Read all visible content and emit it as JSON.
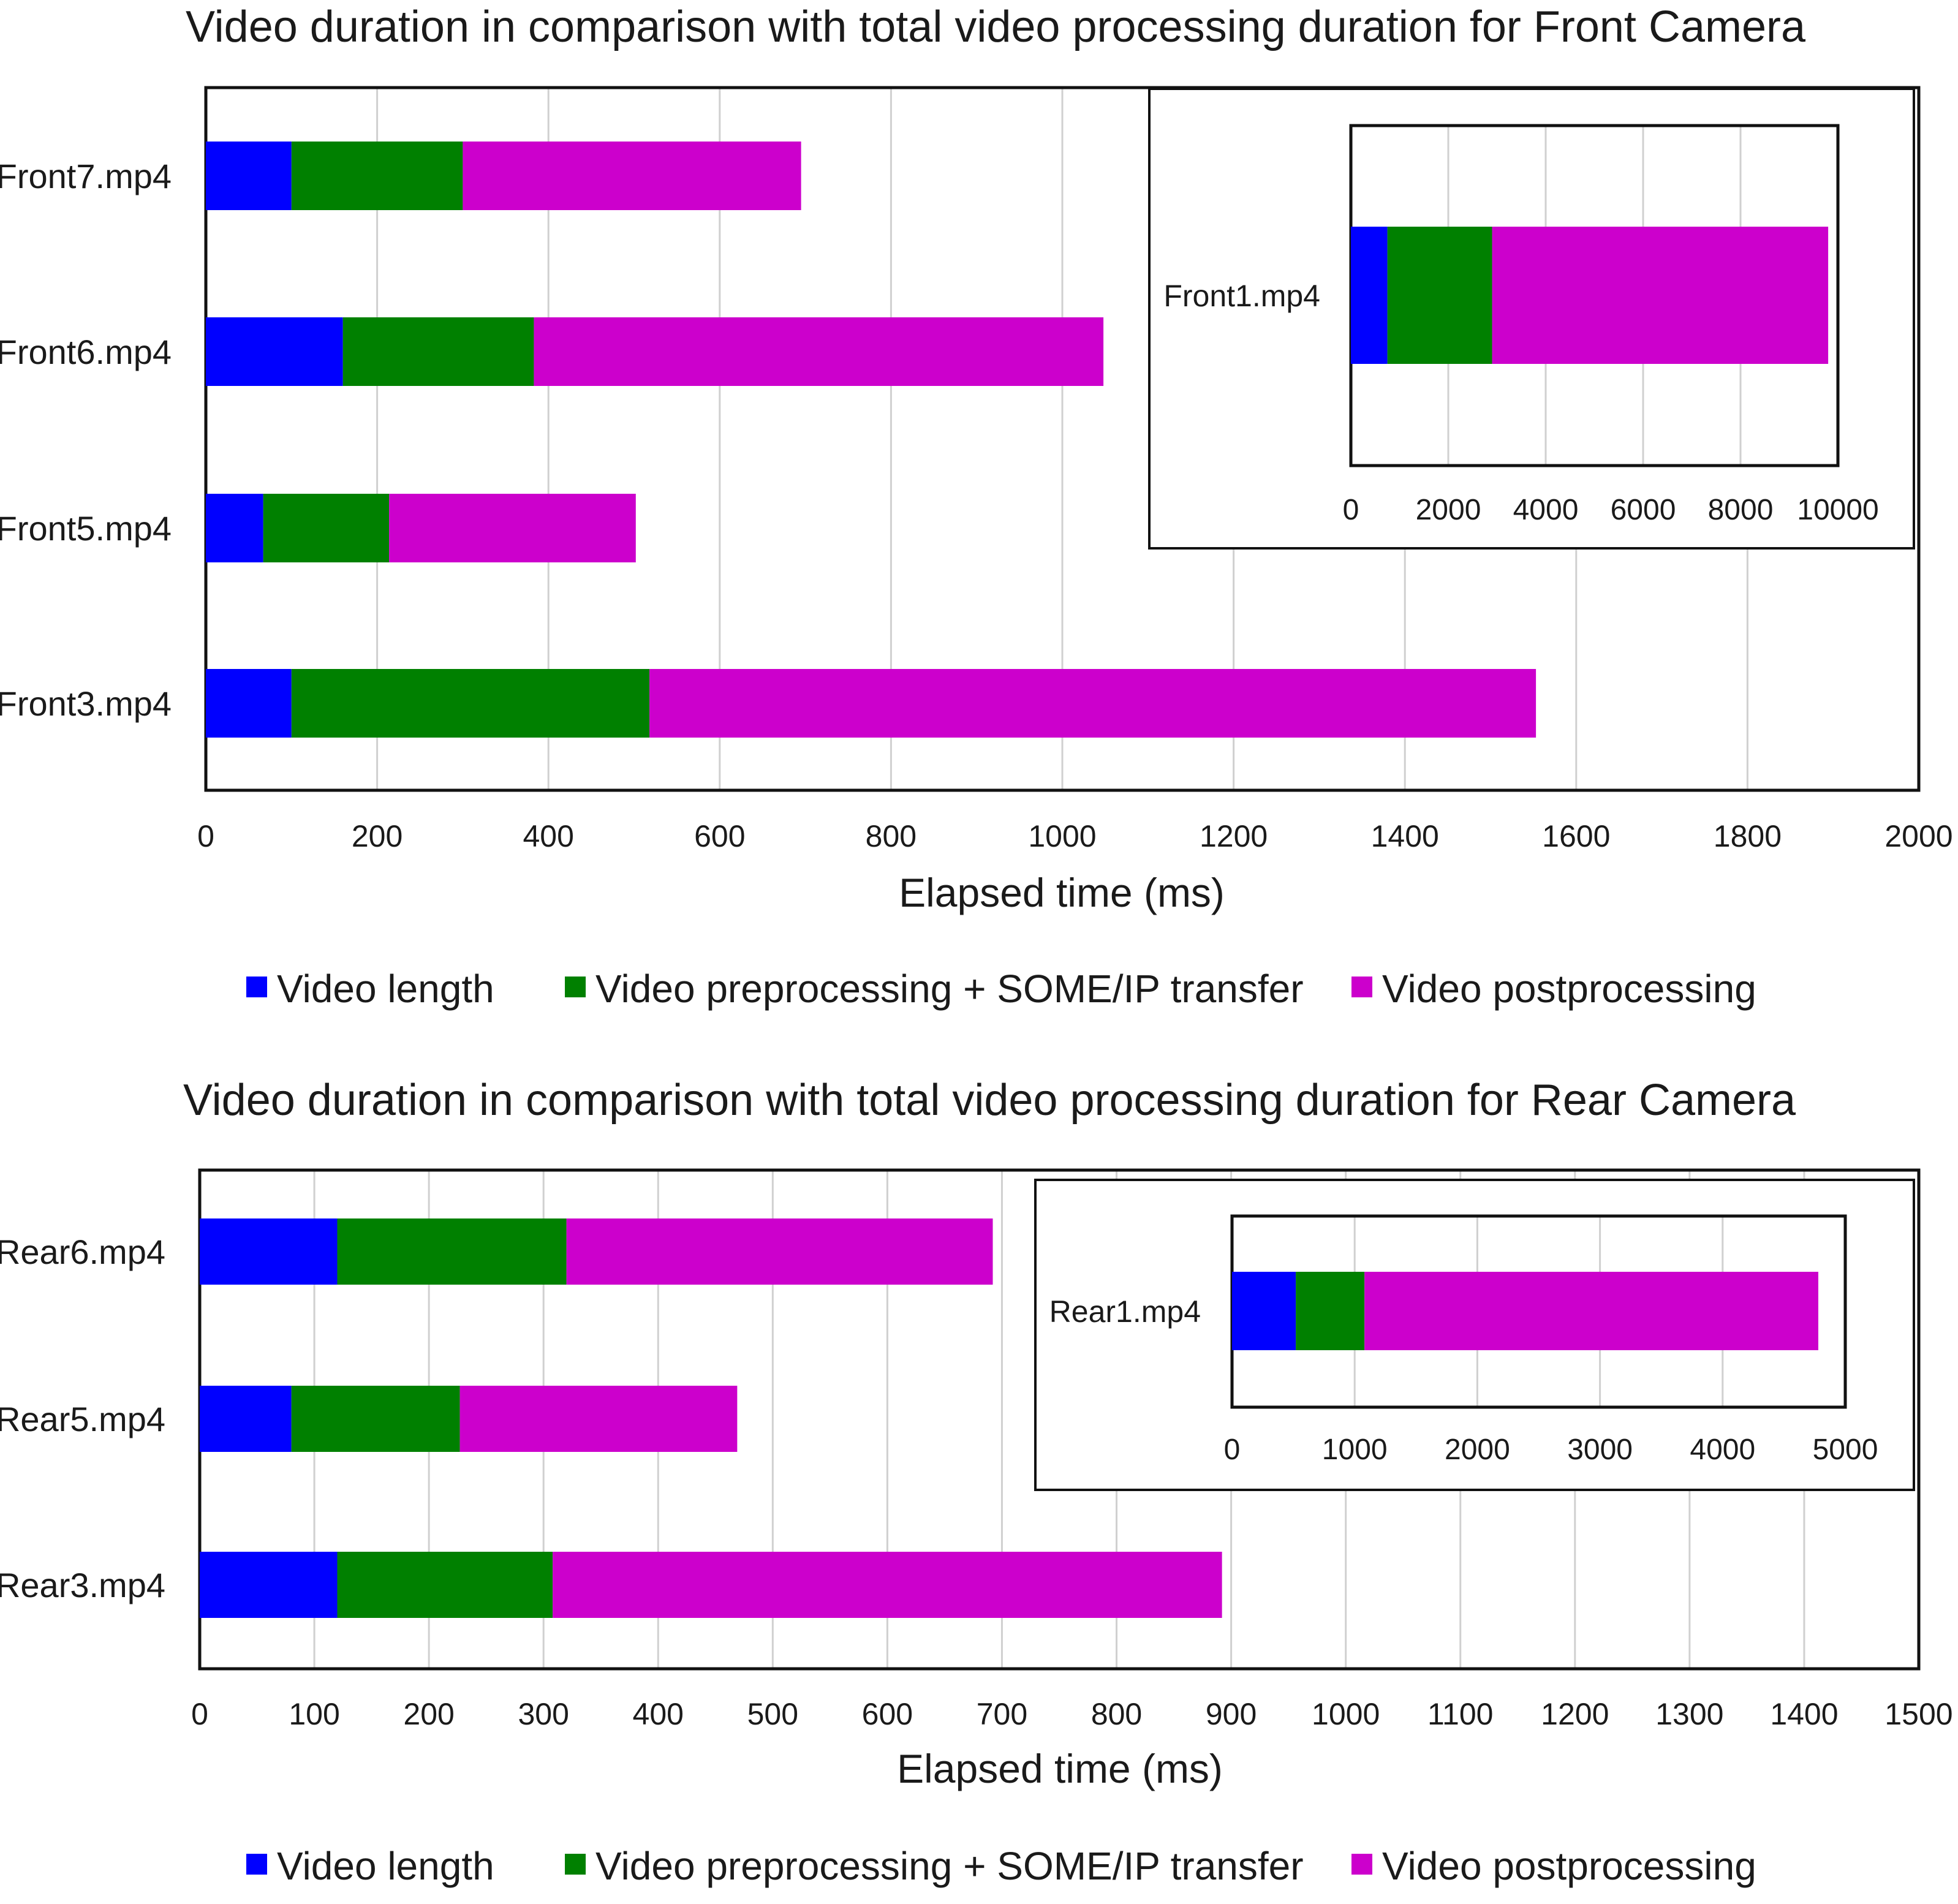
{
  "charts": [
    {
      "chart_data": {
        "type": "bar",
        "orientation": "horizontal",
        "stacked": true,
        "title": "Video duration in comparison with total video processing duration for Front Camera",
        "xlabel": "Elapsed time (ms)",
        "ylabel": "",
        "xlim": [
          0,
          2000
        ],
        "x_ticks": [
          "0",
          "200",
          "400",
          "600",
          "800",
          "1000",
          "1200",
          "1400",
          "1600",
          "1800",
          "2000"
        ],
        "grid": "vertical",
        "legend_position": "bottom",
        "categories": [
          "Front7.mp4",
          "Front6.mp4",
          "Front5.mp4",
          "Front3.mp4"
        ],
        "series": [
          {
            "name": "Video length",
            "color": "#0000ff",
            "values": [
              100,
              160,
              67,
              100
            ]
          },
          {
            "name": "Video preprocessing + SOME/IP transfer",
            "color": "#008000",
            "values": [
              200,
              223,
              147,
              418
            ]
          },
          {
            "name": "Video postprocessing",
            "color": "#cc00cc",
            "values": [
              395,
              665,
              288,
              1035
            ]
          }
        ],
        "inset": {
          "categories": [
            "Front1.mp4"
          ],
          "xlim": [
            0,
            10000
          ],
          "x_ticks": [
            "0",
            "2000",
            "4000",
            "6000",
            "8000",
            "10000"
          ],
          "series_values": [
            [
              750
            ],
            [
              2150
            ],
            [
              6900
            ]
          ]
        }
      }
    },
    {
      "chart_data": {
        "type": "bar",
        "orientation": "horizontal",
        "stacked": true,
        "title": "Video duration in comparison with total video processing duration for Rear Camera",
        "xlabel": "Elapsed time (ms)",
        "ylabel": "",
        "xlim": [
          0,
          1500
        ],
        "x_ticks": [
          "0",
          "100",
          "200",
          "300",
          "400",
          "500",
          "600",
          "700",
          "800",
          "900",
          "1000",
          "1100",
          "1200",
          "1300",
          "1400",
          "1500"
        ],
        "grid": "vertical",
        "legend_position": "bottom",
        "categories": [
          "Rear6.mp4",
          "Rear5.mp4",
          "Rear3.mp4"
        ],
        "series": [
          {
            "name": "Video length",
            "color": "#0000ff",
            "values": [
              120,
              80,
              120
            ]
          },
          {
            "name": "Video preprocessing + SOME/IP transfer",
            "color": "#008000",
            "values": [
              200,
              147,
              188
            ]
          },
          {
            "name": "Video postprocessing",
            "color": "#cc00cc",
            "values": [
              372,
              242,
              584
            ]
          }
        ],
        "inset": {
          "categories": [
            "Rear1.mp4"
          ],
          "xlim": [
            0,
            5000
          ],
          "x_ticks": [
            "0",
            "1000",
            "2000",
            "3000",
            "4000",
            "5000"
          ],
          "series_values": [
            [
              520
            ],
            [
              560
            ],
            [
              3700
            ]
          ]
        }
      }
    }
  ]
}
